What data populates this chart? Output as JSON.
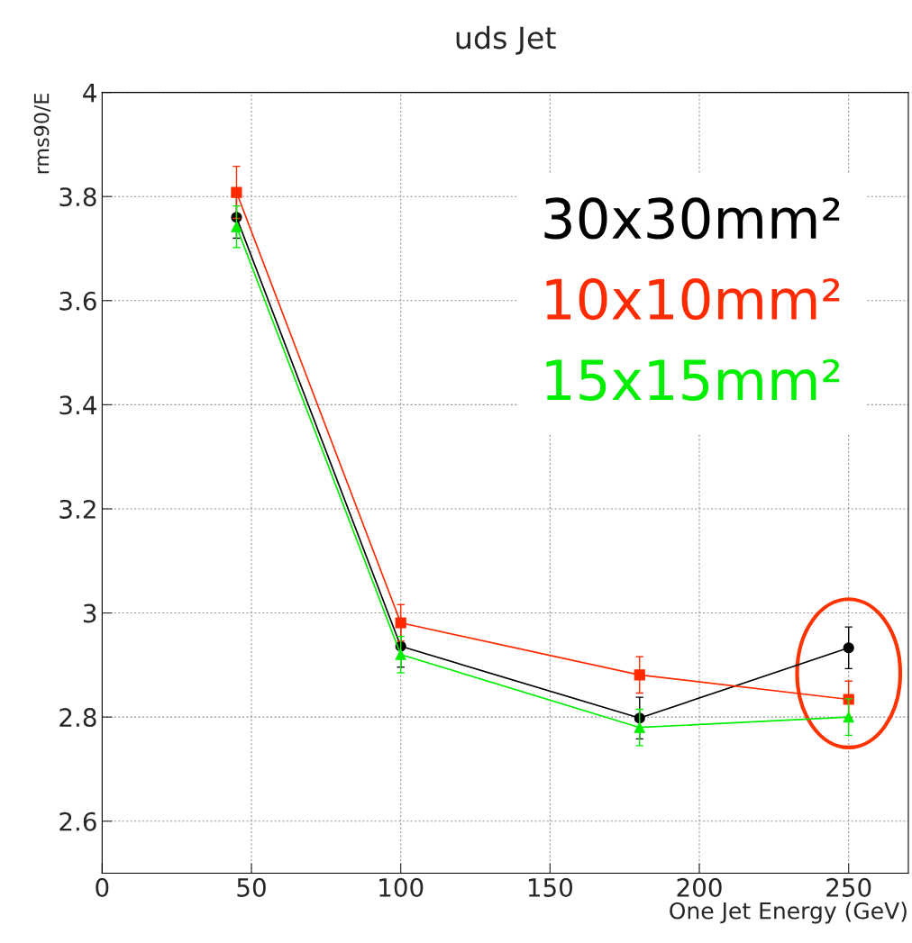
{
  "chart_data": {
    "type": "line",
    "title": "uds Jet",
    "xlabel": "One Jet Energy (GeV)",
    "ylabel": "rms90/E",
    "x": [
      45,
      100,
      180,
      250
    ],
    "series": [
      {
        "name": "30x30mm²",
        "color": "#000000",
        "marker": "circle",
        "values": [
          3.76,
          2.936,
          2.798,
          2.933
        ],
        "errors": [
          0.04,
          0.04,
          0.04,
          0.04
        ]
      },
      {
        "name": "10x10mm²",
        "color": "#ff2a00",
        "marker": "square",
        "values": [
          3.808,
          2.981,
          2.881,
          2.834
        ],
        "errors": [
          0.05,
          0.035,
          0.035,
          0.035
        ]
      },
      {
        "name": "15x15mm²",
        "color": "#00ee00",
        "marker": "triangle",
        "values": [
          3.742,
          2.92,
          2.78,
          2.8
        ],
        "errors": [
          0.04,
          0.035,
          0.035,
          0.035
        ]
      }
    ],
    "xlim": [
      0,
      270
    ],
    "xticks": [
      0,
      50,
      100,
      150,
      200,
      250
    ],
    "ylim": [
      2.5,
      4
    ],
    "yticks": [
      2.6,
      2.8,
      3,
      3.2,
      3.4,
      3.6,
      3.8,
      4
    ],
    "grid": true,
    "legend": "top right",
    "line_style": "solid"
  }
}
